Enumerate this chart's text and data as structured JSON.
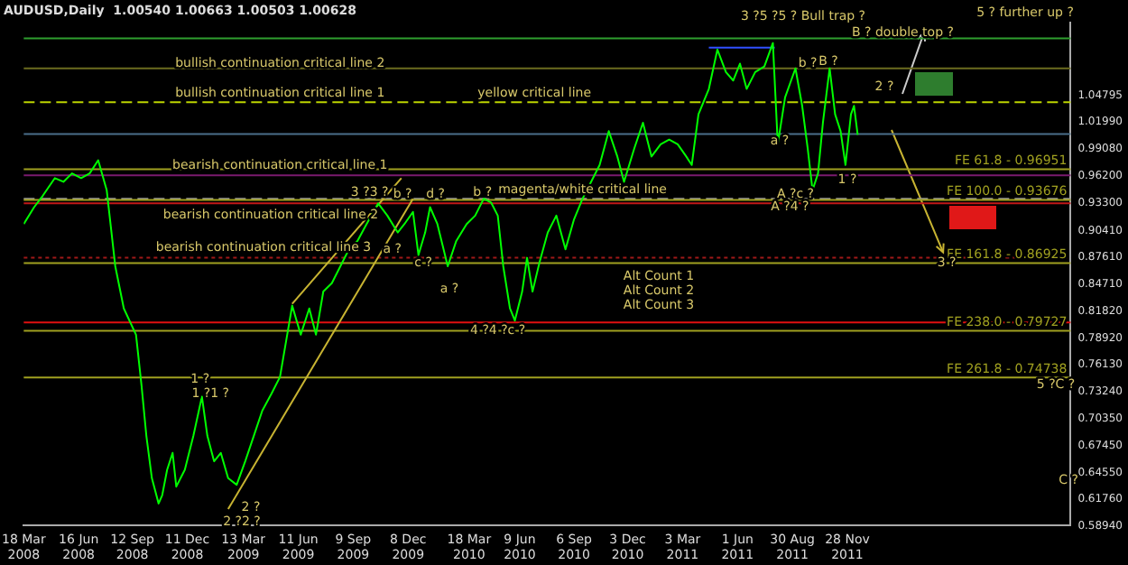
{
  "chart_data": {
    "type": "line",
    "title": "AUDUSD,Daily  1.00540 1.00663 1.00503 1.00628",
    "xlim": [
      "2008-03-18",
      "2012-11-28"
    ],
    "xticks": [
      {
        "value": "2008-03-18",
        "label": "18 Mar 2008"
      },
      {
        "value": "2008-06-16",
        "label": "16 Jun 2008"
      },
      {
        "value": "2008-09-12",
        "label": "12 Sep 2008"
      },
      {
        "value": "2008-12-11",
        "label": "11 Dec 2008"
      },
      {
        "value": "2009-03-13",
        "label": "13 Mar 2009"
      },
      {
        "value": "2009-06-11",
        "label": "11 Jun 2009"
      },
      {
        "value": "2009-09-09",
        "label": "9 Sep 2009"
      },
      {
        "value": "2009-12-08",
        "label": "8 Dec 2009"
      },
      {
        "value": "2010-03-18",
        "label": "18 Mar 2010"
      },
      {
        "value": "2010-06-09",
        "label": "9 Jun 2010"
      },
      {
        "value": "2010-09-06",
        "label": "6 Sep 2010"
      },
      {
        "value": "2010-12-03",
        "label": "3 Dec 2010"
      },
      {
        "value": "2011-03-03",
        "label": "3 Mar 2011"
      },
      {
        "value": "2011-06-01",
        "label": "1 Jun 2011"
      },
      {
        "value": "2011-08-30",
        "label": "30 Aug 2011"
      },
      {
        "value": "2011-11-28",
        "label": "28 Nov 2011"
      }
    ],
    "ylim": [
      0.5894,
      1.126
    ],
    "yticks": [
      {
        "value": 0.5894,
        "label": "0.58940"
      },
      {
        "value": 0.6176,
        "label": "0.61760"
      },
      {
        "value": 0.6455,
        "label": "0.64550"
      },
      {
        "value": 0.6745,
        "label": "0.67450"
      },
      {
        "value": 0.7035,
        "label": "0.70350"
      },
      {
        "value": 0.7324,
        "label": "0.73240"
      },
      {
        "value": 0.7613,
        "label": "0.76130"
      },
      {
        "value": 0.7892,
        "label": "0.78920"
      },
      {
        "value": 0.8182,
        "label": "0.81820"
      },
      {
        "value": 0.8471,
        "label": "0.84710"
      },
      {
        "value": 0.8761,
        "label": "0.87610"
      },
      {
        "value": 0.9041,
        "label": "0.90410"
      },
      {
        "value": 0.933,
        "label": "0.93300"
      },
      {
        "value": 0.962,
        "label": "0.96200"
      },
      {
        "value": 0.9908,
        "label": "0.99080"
      },
      {
        "value": 1.0199,
        "label": "1.01990"
      },
      {
        "value": 1.04795,
        "label": "1.04795"
      }
    ],
    "series": [
      {
        "type": "line",
        "color": "#00ff00",
        "x": [
          "2008-03-18",
          "2008-04-04",
          "2008-04-18",
          "2008-05-08",
          "2008-05-22",
          "2008-06-05",
          "2008-06-20",
          "2008-07-04",
          "2008-07-18",
          "2008-08-01",
          "2008-08-15",
          "2008-08-29",
          "2008-09-18",
          "2008-09-27",
          "2008-10-05",
          "2008-10-14",
          "2008-10-25",
          "2008-10-31",
          "2008-11-08",
          "2008-11-17",
          "2008-11-23",
          "2008-12-07",
          "2008-12-21",
          "2009-01-04",
          "2009-01-13",
          "2009-01-24",
          "2009-02-04",
          "2009-02-16",
          "2009-03-02",
          "2009-03-16",
          "2009-03-30",
          "2009-04-13",
          "2009-04-28",
          "2009-05-12",
          "2009-06-01",
          "2009-06-15",
          "2009-06-29",
          "2009-07-10",
          "2009-07-22",
          "2009-08-05",
          "2009-08-19",
          "2009-09-02",
          "2009-09-16",
          "2009-10-01",
          "2009-10-20",
          "2009-11-04",
          "2009-11-21",
          "2009-12-02",
          "2009-12-16",
          "2009-12-25",
          "2010-01-05",
          "2010-01-13",
          "2010-01-25",
          "2010-02-11",
          "2010-02-25",
          "2010-03-14",
          "2010-03-28",
          "2010-04-11",
          "2010-04-23",
          "2010-05-04",
          "2010-05-13",
          "2010-05-24",
          "2010-06-01",
          "2010-06-13",
          "2010-06-21",
          "2010-06-30",
          "2010-07-11",
          "2010-07-25",
          "2010-08-08",
          "2010-08-23",
          "2010-09-06",
          "2010-09-20",
          "2010-10-04",
          "2010-10-18",
          "2010-11-02",
          "2010-11-16",
          "2010-11-27",
          "2010-12-14",
          "2010-12-28",
          "2011-01-11",
          "2011-01-26",
          "2011-02-09",
          "2011-02-23",
          "2011-03-09",
          "2011-03-18",
          "2011-03-29",
          "2011-04-15",
          "2011-04-29",
          "2011-05-13",
          "2011-05-25",
          "2011-06-05",
          "2011-06-16",
          "2011-06-30",
          "2011-07-15",
          "2011-07-29",
          "2011-08-06",
          "2011-08-18",
          "2011-09-04",
          "2011-09-15",
          "2011-09-24",
          "2011-10-02",
          "2011-10-11",
          "2011-10-19",
          "2011-10-30",
          "2011-11-08",
          "2011-11-17",
          "2011-11-25",
          "2011-12-04",
          "2011-12-09",
          "2011-12-15"
        ],
        "values": [
          0.911,
          0.929,
          0.941,
          0.96,
          0.956,
          0.965,
          0.96,
          0.965,
          0.979,
          0.947,
          0.866,
          0.821,
          0.793,
          0.739,
          0.685,
          0.64,
          0.613,
          0.622,
          0.649,
          0.667,
          0.631,
          0.649,
          0.685,
          0.727,
          0.685,
          0.658,
          0.667,
          0.64,
          0.633,
          0.658,
          0.685,
          0.712,
          0.73,
          0.748,
          0.824,
          0.793,
          0.821,
          0.793,
          0.839,
          0.848,
          0.866,
          0.884,
          0.893,
          0.911,
          0.933,
          0.92,
          0.902,
          0.911,
          0.924,
          0.878,
          0.902,
          0.929,
          0.911,
          0.866,
          0.893,
          0.911,
          0.92,
          0.938,
          0.934,
          0.92,
          0.866,
          0.821,
          0.808,
          0.839,
          0.875,
          0.839,
          0.869,
          0.902,
          0.92,
          0.884,
          0.916,
          0.938,
          0.956,
          0.974,
          1.01,
          0.983,
          0.956,
          0.992,
          1.019,
          0.983,
          0.996,
          1.001,
          0.996,
          0.983,
          0.974,
          1.028,
          1.055,
          1.097,
          1.073,
          1.064,
          1.082,
          1.055,
          1.073,
          1.079,
          1.104,
          0.996,
          1.046,
          1.077,
          1.037,
          0.992,
          0.947,
          0.965,
          1.019,
          1.077,
          1.028,
          1.01,
          0.974,
          1.028,
          1.037,
          1.006
        ]
      },
      {
        "type": "line",
        "color": "#c8b432",
        "x": [
          "2009-02-16",
          "2009-12-16"
        ],
        "values": [
          0.607,
          0.938
        ]
      },
      {
        "type": "line",
        "color": "#c8b432",
        "x": [
          "2009-06-01",
          "2009-11-27"
        ],
        "values": [
          0.826,
          0.96
        ]
      },
      {
        "type": "line",
        "color": "#3050ff",
        "x": [
          "2011-04-15",
          "2011-08-01"
        ],
        "values": [
          1.099,
          1.099
        ]
      }
    ],
    "ref_lines": [
      {
        "axis": "y",
        "value": 1.109,
        "color": "#2e9e2e"
      },
      {
        "axis": "y",
        "value": 1.077,
        "color": "#6b6b1f"
      },
      {
        "axis": "y",
        "value": 1.041,
        "color": "#bcd400",
        "line_style": "dashed"
      },
      {
        "axis": "y",
        "value": 1.007,
        "color": "#4a6e8a"
      },
      {
        "axis": "y",
        "value": 0.963,
        "color": "#7a1a6e"
      },
      {
        "axis": "y",
        "value": 0.938,
        "color": "#9a9a9a",
        "line_style": "dashed"
      },
      {
        "axis": "y",
        "value": 0.933,
        "color": "#c01818"
      },
      {
        "axis": "y",
        "value": 0.875,
        "color": "#a01818",
        "line_style": "dotted"
      },
      {
        "axis": "y",
        "value": 0.806,
        "color": "#e01010"
      },
      {
        "axis": "y",
        "value": 0.96951,
        "color": "#a0a020",
        "label": "FE 61.8 - 0.96951"
      },
      {
        "axis": "y",
        "value": 0.93676,
        "color": "#a0a020",
        "label": "FE 100.0 - 0.93676"
      },
      {
        "axis": "y",
        "value": 0.86925,
        "color": "#a0a020",
        "label": "FE 161.8 - 0.86925"
      },
      {
        "axis": "y",
        "value": 0.79727,
        "color": "#a0a020",
        "label": "FE 238.0 - 0.79727"
      },
      {
        "axis": "y",
        "value": 0.74738,
        "color": "#a0a020",
        "label": "FE 261.8 - 0.74738"
      }
    ],
    "annotations": [
      {
        "text": "bullish continuation critical line 2",
        "x": "2009-05-12",
        "y": 1.082
      },
      {
        "text": "bullish continuation critical line 1",
        "x": "2009-05-12",
        "y": 1.05
      },
      {
        "text": "yellow critical line",
        "x": "2010-07-03",
        "y": 1.05
      },
      {
        "text": "bearish continuation critical line 1",
        "x": "2009-05-12",
        "y": 0.973
      },
      "bearish continuation critical line 2",
      "bearish continuation critical line 3",
      {
        "text": "magenta/white critical line",
        "x": "2010-09-20",
        "y": 0.947
      },
      "3 ?5 ?5 ? Bull trap ?",
      {
        "text": "B ? double top ?",
        "x": "2012-02-27",
        "y": 1.115
      },
      "5 ? further up ?",
      {
        "text": "b ?",
        "x": "2011-09-24",
        "y": 1.082
      },
      {
        "text": "B ?",
        "x": "2011-10-28",
        "y": 1.084
      },
      "a ?",
      "2 ?",
      {
        "text": "1 ?",
        "x": "2011-11-28",
        "y": 0.958
      },
      {
        "text": "A ?c ?",
        "x": "2011-09-04",
        "y": 0.943
      },
      {
        "text": "A ?4 ?",
        "x": "2011-08-26",
        "y": 0.929
      },
      {
        "text": "3 ?3 ?",
        "x": "2009-10-06",
        "y": 0.945
      },
      {
        "text": "b ?",
        "x": "2009-11-29",
        "y": 0.943
      },
      {
        "text": "d ?",
        "x": "2010-01-22",
        "y": 0.943
      },
      {
        "text": "b ?",
        "x": "2010-04-09",
        "y": 0.945
      },
      {
        "text": "a ?",
        "x": "2009-11-12",
        "y": 0.884
      },
      {
        "text": "c ?",
        "x": "2010-01-02",
        "y": 0.869
      },
      "a ?",
      {
        "text": "4 ?4 ?c ?",
        "x": "2010-05-04",
        "y": 0.797
      },
      {
        "text": "1 ?",
        "x": "2009-01-01",
        "y": 0.745
      },
      {
        "text": "1 ?1 ?",
        "x": "2009-01-18",
        "y": 0.73
      },
      "2 ?",
      "2 ?2 ?",
      "Alt Count 1",
      "Alt Count 2",
      "Alt Count 3",
      {
        "text": "3 ?",
        "x": "2012-05-09",
        "y": 0.86925
      },
      "5 ?C ?",
      "C ?"
    ]
  }
}
